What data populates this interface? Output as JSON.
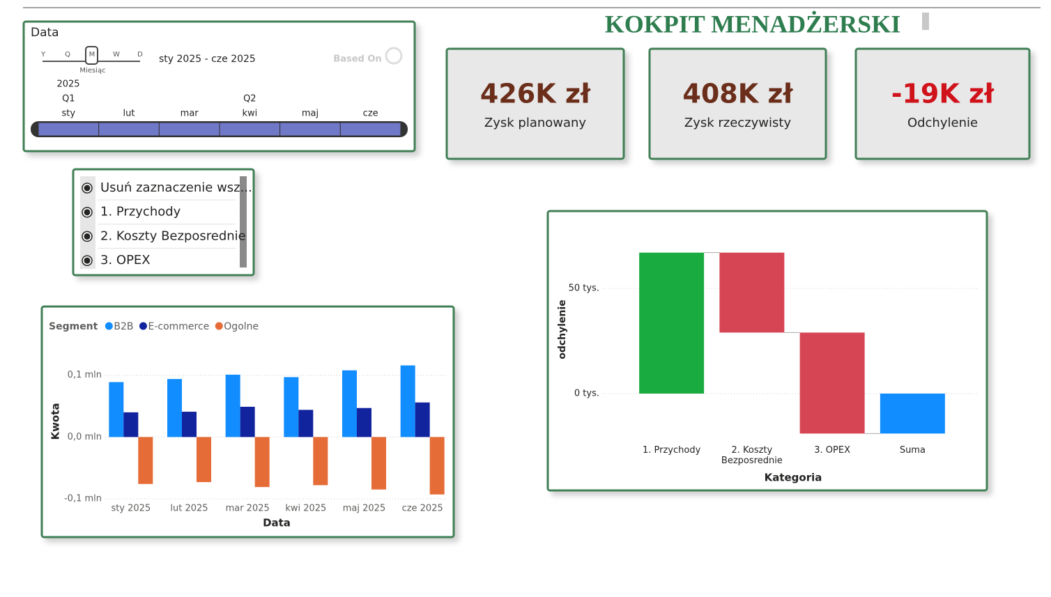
{
  "header": {
    "title": "KOKPIT MENADŻERSKI"
  },
  "timeline": {
    "title": "Data",
    "granularity_labels": [
      "Y",
      "Q",
      "M",
      "W",
      "D"
    ],
    "granularity_selected": "Miesiąc",
    "range": "sty 2025 - cze 2025",
    "logo": "Based On",
    "year": "2025",
    "quarters": [
      "Q1",
      "Q2"
    ],
    "months": [
      "sty",
      "lut",
      "mar",
      "kwi",
      "maj",
      "cze"
    ]
  },
  "cards": [
    {
      "value": "426K zł",
      "label": "Zysk planowany",
      "value_color": "#6b2e1a"
    },
    {
      "value": "408K zł",
      "label": "Zysk rzeczywisty",
      "value_color": "#6b2e1a"
    },
    {
      "value": "-19K zł",
      "label": "Odchylenie",
      "value_color": "#d0121b"
    }
  ],
  "slicer": {
    "items": [
      "Usuń zaznaczenie wsz...",
      "1. Przychody",
      "2. Koszty Bezposrednie",
      "3. OPEX"
    ]
  },
  "chart_data": [
    {
      "type": "bar",
      "legend_title": "Segment",
      "x_label": "Data",
      "y_label": "Kwota",
      "categories": [
        "sty 2025",
        "lut 2025",
        "mar 2025",
        "kwi 2025",
        "maj 2025",
        "cze 2025"
      ],
      "series": [
        {
          "name": "B2B",
          "color": "#118dff",
          "values": [
            0.089,
            0.094,
            0.101,
            0.097,
            0.108,
            0.116
          ]
        },
        {
          "name": "E-commerce",
          "color": "#12239e",
          "values": [
            0.04,
            0.041,
            0.049,
            0.044,
            0.047,
            0.056
          ]
        },
        {
          "name": "Ogolne",
          "color": "#e66c37",
          "values": [
            -0.076,
            -0.073,
            -0.081,
            -0.078,
            -0.085,
            -0.093
          ]
        }
      ],
      "ylim": [
        -0.1,
        0.12
      ],
      "yticks": [
        {
          "value": -0.1,
          "label": "-0,1 mln"
        },
        {
          "value": 0,
          "label": "0,0 mln"
        },
        {
          "value": 0.1,
          "label": "0,1 mln"
        }
      ],
      "grid": true
    },
    {
      "type": "waterfall",
      "x_label": "Kategoria",
      "y_label": "odchylenie",
      "categories": [
        "1. Przychody",
        "2. Koszty Bezposrednie",
        "3. OPEX",
        "Suma"
      ],
      "values": [
        67,
        -38,
        -48,
        -19
      ],
      "colors": {
        "increase": "#1aab40",
        "decrease": "#d64554",
        "total": "#118dff"
      },
      "ylim": [
        -20,
        75
      ],
      "yticks": [
        {
          "value": 0,
          "label": "0 tys."
        },
        {
          "value": 50,
          "label": "50 tys."
        }
      ],
      "grid": true
    }
  ]
}
